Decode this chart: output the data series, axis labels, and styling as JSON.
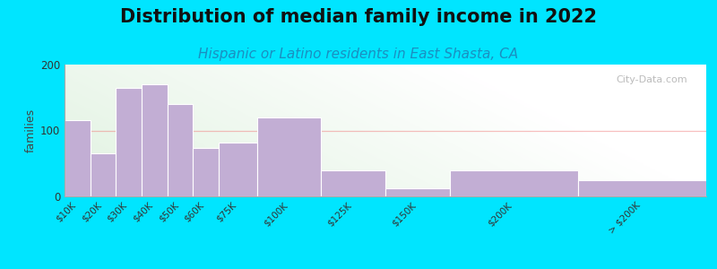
{
  "title": "Distribution of median family income in 2022",
  "subtitle": "Hispanic or Latino residents in East Shasta, CA",
  "ylabel": "families",
  "bar_color": "#c2aed4",
  "bar_edgecolor": "white",
  "categories": [
    "$10K",
    "$20K",
    "$30K",
    "$40K",
    "$50K",
    "$60K",
    "$75K",
    "$100K",
    "$125K",
    "$150K",
    "$200K",
    "> $200K"
  ],
  "values": [
    115,
    65,
    165,
    170,
    140,
    73,
    82,
    120,
    40,
    12,
    40,
    25
  ],
  "bar_lefts": [
    0,
    10,
    20,
    30,
    40,
    50,
    60,
    75,
    100,
    125,
    150,
    200
  ],
  "bar_widths": [
    10,
    10,
    10,
    10,
    10,
    10,
    15,
    25,
    25,
    25,
    50,
    50
  ],
  "x_tick_positions": [
    5,
    15,
    25,
    35,
    45,
    55,
    67.5,
    87.5,
    112.5,
    137.5,
    175,
    225
  ],
  "xlim": [
    0,
    250
  ],
  "ylim": [
    0,
    200
  ],
  "yticks": [
    0,
    100,
    200
  ],
  "bg_outer": "#00e5ff",
  "title_fontsize": 15,
  "title_fontweight": "bold",
  "subtitle_fontsize": 11,
  "subtitle_color": "#1a8fc1",
  "ylabel_fontsize": 9,
  "tick_fontsize": 7.5,
  "watermark_text": "City-Data.com",
  "watermark_color": "#b0b0b0",
  "hgrid_color": "#f08080",
  "hgrid_alpha": 0.5
}
